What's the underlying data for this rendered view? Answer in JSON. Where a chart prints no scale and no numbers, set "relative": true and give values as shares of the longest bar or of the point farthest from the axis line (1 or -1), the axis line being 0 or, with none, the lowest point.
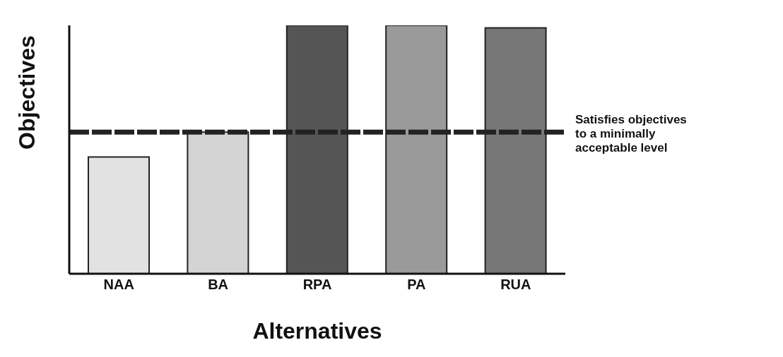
{
  "chart_data": {
    "type": "bar",
    "relative": true,
    "xlabel": "Alternatives",
    "ylabel": "Objectives",
    "categories": [
      "NAA",
      "BA",
      "RPA",
      "PA",
      "RUA"
    ],
    "values": [
      0.47,
      0.57,
      1,
      1,
      0.99
    ],
    "colors": [
      "#e2e2e2",
      "#d4d4d4",
      "#555555",
      "#9a9a9a",
      "#777777"
    ],
    "ref_lines": [
      {
        "axis": "y",
        "value": 0.57,
        "label": "Satisfies objectives to a minimally acceptable level",
        "color": "#222222",
        "line_style": "dashed"
      }
    ],
    "data_labels": false
  }
}
